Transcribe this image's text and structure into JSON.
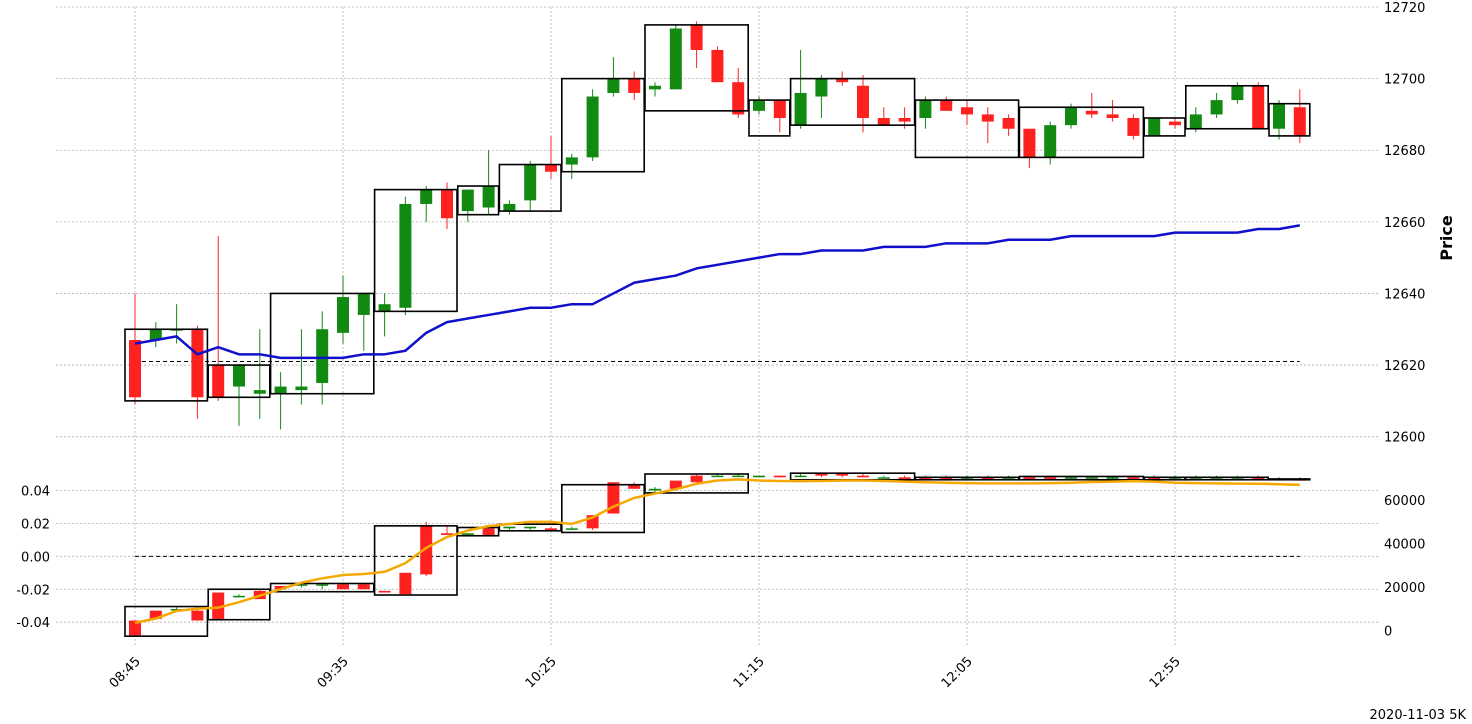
{
  "chart_data": {
    "type": "candlestick",
    "footer": "2020-11-03 5K",
    "ylabel": "Price",
    "x_ticks": [
      {
        "index": 0,
        "label": "08:45"
      },
      {
        "index": 10,
        "label": "09:35"
      },
      {
        "index": 20,
        "label": "10:25"
      },
      {
        "index": 30,
        "label": "11:15"
      },
      {
        "index": 40,
        "label": "12:05"
      },
      {
        "index": 50,
        "label": "12:55"
      }
    ],
    "price_panel": {
      "ylim": [
        12596,
        12720
      ],
      "y_ticks": [
        "12600",
        "12620",
        "12640",
        "12660",
        "12680",
        "12700",
        "12720"
      ],
      "reference_line": 12621,
      "candles": [
        [
          0,
          12627,
          12640,
          12609,
          12611
        ],
        [
          1,
          12627,
          12632,
          12625,
          12630
        ],
        [
          2,
          12630,
          12637,
          12626,
          12630
        ],
        [
          3,
          12630,
          12631,
          12605,
          12611
        ],
        [
          4,
          12620,
          12656,
          12610,
          12611
        ],
        [
          5,
          12614,
          12620,
          12603,
          12620
        ],
        [
          6,
          12612,
          12630,
          12605,
          12613
        ],
        [
          7,
          12612,
          12618,
          12602,
          12614
        ],
        [
          8,
          12613,
          12630,
          12609,
          12614
        ],
        [
          9,
          12615,
          12635,
          12609,
          12630
        ],
        [
          10,
          12629,
          12645,
          12626,
          12639
        ],
        [
          11,
          12634,
          12640,
          12624,
          12640
        ],
        [
          12,
          12635,
          12640,
          12628,
          12637
        ],
        [
          13,
          12636,
          12667,
          12634,
          12665
        ],
        [
          14,
          12665,
          12670,
          12660,
          12669
        ],
        [
          15,
          12669,
          12671,
          12658,
          12661
        ],
        [
          16,
          12663,
          12669,
          12660,
          12669
        ],
        [
          17,
          12664,
          12680,
          12662,
          12670
        ],
        [
          18,
          12663,
          12666,
          12662,
          12665
        ],
        [
          19,
          12666,
          12677,
          12663,
          12676
        ],
        [
          20,
          12676,
          12684,
          12672,
          12674
        ],
        [
          21,
          12676,
          12679,
          12672,
          12678
        ],
        [
          22,
          12678,
          12697,
          12677,
          12695
        ],
        [
          23,
          12696,
          12706,
          12695,
          12700
        ],
        [
          24,
          12700,
          12702,
          12694,
          12696
        ],
        [
          25,
          12697,
          12699,
          12695,
          12698
        ],
        [
          26,
          12697,
          12715,
          12697,
          12714
        ],
        [
          27,
          12715,
          12716,
          12703,
          12708
        ],
        [
          28,
          12708,
          12709,
          12699,
          12699
        ],
        [
          29,
          12699,
          12703,
          12689,
          12690
        ],
        [
          30,
          12691,
          12695,
          12690,
          12694
        ],
        [
          31,
          12694,
          12694,
          12685,
          12689
        ],
        [
          32,
          12687,
          12708,
          12686,
          12696
        ],
        [
          33,
          12695,
          12701,
          12689,
          12700
        ],
        [
          34,
          12700,
          12702,
          12698,
          12699
        ],
        [
          35,
          12698,
          12701,
          12685,
          12689
        ],
        [
          36,
          12689,
          12692,
          12687,
          12687
        ],
        [
          37,
          12689,
          12692,
          12686,
          12688
        ],
        [
          38,
          12689,
          12695,
          12686,
          12694
        ],
        [
          39,
          12694,
          12695,
          12691,
          12691
        ],
        [
          40,
          12692,
          12694,
          12687,
          12690
        ],
        [
          41,
          12690,
          12692,
          12682,
          12688
        ],
        [
          42,
          12689,
          12690,
          12684,
          12686
        ],
        [
          43,
          12686,
          12686,
          12675,
          12678
        ],
        [
          44,
          12678,
          12688,
          12676,
          12687
        ],
        [
          45,
          12687,
          12693,
          12686,
          12692
        ],
        [
          46,
          12691,
          12696,
          12689,
          12690
        ],
        [
          47,
          12690,
          12694,
          12688,
          12689
        ],
        [
          48,
          12689,
          12690,
          12683,
          12684
        ],
        [
          49,
          12684,
          12689,
          12684,
          12689
        ],
        [
          50,
          12688,
          12689,
          12686,
          12687
        ],
        [
          51,
          12686,
          12692,
          12685,
          12690
        ],
        [
          52,
          12690,
          12696,
          12689,
          12694
        ],
        [
          53,
          12694,
          12699,
          12693,
          12698
        ],
        [
          54,
          12698,
          12699,
          12686,
          12686
        ],
        [
          55,
          12686,
          12694,
          12683,
          12693
        ],
        [
          56,
          12692,
          12697,
          12682,
          12684
        ]
      ],
      "vwap_series": {
        "color": "#1010cc",
        "values": [
          12626,
          12627,
          12628,
          12623,
          12625,
          12623,
          12623,
          12622,
          12622,
          12622,
          12622,
          12623,
          12623,
          12624,
          12629,
          12632,
          12633,
          12634,
          12635,
          12636,
          12636,
          12637,
          12637,
          12640,
          12643,
          12644,
          12645,
          12647,
          12648,
          12649,
          12650,
          12651,
          12651,
          12652,
          12652,
          12652,
          12653,
          12653,
          12653,
          12654,
          12654,
          12654,
          12655,
          12655,
          12655,
          12656,
          12656,
          12656,
          12656,
          12656,
          12657,
          12657,
          12657,
          12657,
          12658,
          12658,
          12659
        ]
      },
      "boxes": [
        {
          "i0": 0,
          "i1": 3,
          "lo": 12610,
          "hi": 12630
        },
        {
          "i0": 4,
          "i1": 6,
          "lo": 12611,
          "hi": 12620
        },
        {
          "i0": 7,
          "i1": 11,
          "lo": 12612,
          "hi": 12640
        },
        {
          "i0": 12,
          "i1": 15,
          "lo": 12635,
          "hi": 12669
        },
        {
          "i0": 16,
          "i1": 17,
          "lo": 12662,
          "hi": 12670
        },
        {
          "i0": 18,
          "i1": 20,
          "lo": 12663,
          "hi": 12676
        },
        {
          "i0": 21,
          "i1": 24,
          "lo": 12674,
          "hi": 12700
        },
        {
          "i0": 25,
          "i1": 29,
          "lo": 12691,
          "hi": 12715
        },
        {
          "i0": 30,
          "i1": 31,
          "lo": 12684,
          "hi": 12694
        },
        {
          "i0": 32,
          "i1": 37,
          "lo": 12687,
          "hi": 12700
        },
        {
          "i0": 38,
          "i1": 42,
          "lo": 12678,
          "hi": 12694
        },
        {
          "i0": 43,
          "i1": 48,
          "lo": 12678,
          "hi": 12692
        },
        {
          "i0": 49,
          "i1": 50,
          "lo": 12684,
          "hi": 12689
        },
        {
          "i0": 51,
          "i1": 54,
          "lo": 12686,
          "hi": 12698
        },
        {
          "i0": 55,
          "i1": 56,
          "lo": 12684,
          "hi": 12693
        }
      ]
    },
    "sub_panel": {
      "left_ylim": [
        -0.049,
        0.05
      ],
      "left_ticks": [
        "-0.04",
        "-0.02",
        "0.00",
        "0.02",
        "0.04"
      ],
      "right_ylim": [
        -3000,
        72000
      ],
      "right_ticks": [
        "0",
        "20000",
        "40000",
        "60000"
      ],
      "reference_line": 0.0,
      "candles": [
        [
          0,
          -0.039,
          -0.039,
          -0.048,
          -0.048
        ],
        [
          1,
          -0.033,
          -0.033,
          -0.038,
          -0.038
        ],
        [
          2,
          -0.032,
          -0.031,
          -0.033,
          -0.032
        ],
        [
          3,
          -0.033,
          -0.031,
          -0.039,
          -0.039
        ],
        [
          4,
          -0.022,
          -0.022,
          -0.038,
          -0.038
        ],
        [
          5,
          -0.024,
          -0.023,
          -0.025,
          -0.024
        ],
        [
          6,
          -0.021,
          -0.02,
          -0.026,
          -0.026
        ],
        [
          7,
          -0.018,
          -0.018,
          -0.02,
          -0.02
        ],
        [
          8,
          -0.017,
          -0.016,
          -0.019,
          -0.017
        ],
        [
          9,
          -0.017,
          -0.016,
          -0.02,
          -0.017
        ],
        [
          10,
          -0.017,
          -0.016,
          -0.02,
          -0.02
        ],
        [
          11,
          -0.017,
          -0.016,
          -0.02,
          -0.02
        ],
        [
          12,
          -0.021,
          -0.021,
          -0.022,
          -0.022
        ],
        [
          13,
          -0.01,
          -0.01,
          -0.023,
          -0.023
        ],
        [
          14,
          0.019,
          0.021,
          -0.012,
          -0.011
        ],
        [
          15,
          0.014,
          0.018,
          0.013,
          0.013
        ],
        [
          16,
          0.013,
          0.014,
          0.012,
          0.014
        ],
        [
          17,
          0.017,
          0.018,
          0.013,
          0.013
        ],
        [
          18,
          0.017,
          0.018,
          0.016,
          0.018
        ],
        [
          19,
          0.017,
          0.018,
          0.016,
          0.018
        ],
        [
          20,
          0.017,
          0.018,
          0.016,
          0.016
        ],
        [
          21,
          0.017,
          0.018,
          0.016,
          0.017
        ],
        [
          22,
          0.025,
          0.025,
          0.016,
          0.017
        ],
        [
          23,
          0.045,
          0.045,
          0.026,
          0.026
        ],
        [
          24,
          0.043,
          0.045,
          0.041,
          0.041
        ],
        [
          25,
          0.04,
          0.042,
          0.039,
          0.041
        ],
        [
          26,
          0.046,
          0.046,
          0.04,
          0.041
        ],
        [
          27,
          0.049,
          0.05,
          0.045,
          0.045
        ],
        [
          28,
          0.049,
          0.05,
          0.049,
          0.049
        ],
        [
          29,
          0.049,
          0.05,
          0.049,
          0.049
        ],
        [
          30,
          0.048,
          0.049,
          0.048,
          0.049
        ],
        [
          31,
          0.049,
          0.049,
          0.048,
          0.048
        ],
        [
          32,
          0.049,
          0.05,
          0.048,
          0.049
        ],
        [
          33,
          0.05,
          0.05,
          0.048,
          0.049
        ],
        [
          34,
          0.05,
          0.05,
          0.048,
          0.049
        ],
        [
          35,
          0.049,
          0.05,
          0.048,
          0.048
        ],
        [
          36,
          0.048,
          0.049,
          0.048,
          0.048
        ],
        [
          37,
          0.048,
          0.049,
          0.047,
          0.047
        ],
        [
          38,
          0.048,
          0.049,
          0.047,
          0.047
        ],
        [
          39,
          0.048,
          0.049,
          0.047,
          0.047
        ],
        [
          40,
          0.048,
          0.049,
          0.047,
          0.048
        ],
        [
          41,
          0.048,
          0.049,
          0.047,
          0.047
        ],
        [
          42,
          0.048,
          0.049,
          0.047,
          0.048
        ],
        [
          43,
          0.048,
          0.049,
          0.047,
          0.047
        ],
        [
          44,
          0.048,
          0.049,
          0.047,
          0.047
        ],
        [
          45,
          0.048,
          0.049,
          0.047,
          0.048
        ],
        [
          46,
          0.048,
          0.049,
          0.047,
          0.048
        ],
        [
          47,
          0.048,
          0.049,
          0.047,
          0.048
        ],
        [
          48,
          0.048,
          0.049,
          0.047,
          0.047
        ],
        [
          49,
          0.048,
          0.049,
          0.047,
          0.047
        ],
        [
          50,
          0.048,
          0.049,
          0.047,
          0.048
        ],
        [
          51,
          0.048,
          0.049,
          0.047,
          0.048
        ],
        [
          52,
          0.048,
          0.049,
          0.047,
          0.048
        ],
        [
          53,
          0.048,
          0.049,
          0.047,
          0.048
        ],
        [
          54,
          0.048,
          0.049,
          0.047,
          0.047
        ],
        [
          55,
          0.047,
          0.048,
          0.046,
          0.047
        ],
        [
          56,
          0.047,
          0.048,
          0.046,
          0.046
        ]
      ],
      "line_series": {
        "color": "#f5a800",
        "axis": "right",
        "values": [
          3500,
          5500,
          9000,
          10000,
          10500,
          13000,
          16000,
          19000,
          22000,
          24000,
          25500,
          26000,
          27000,
          31000,
          38000,
          43000,
          46000,
          48000,
          49000,
          50000,
          50000,
          49000,
          52000,
          57000,
          61000,
          63000,
          65000,
          67500,
          69000,
          69500,
          69000,
          68800,
          68700,
          68800,
          69000,
          69000,
          68800,
          68500,
          68200,
          68000,
          67800,
          67700,
          67700,
          67700,
          67800,
          68000,
          68300,
          68500,
          68700,
          68500,
          68000,
          67800,
          67700,
          67600,
          67500,
          67300,
          67000
        ]
      },
      "boxes": [
        {
          "i0": 0,
          "i1": 3,
          "lo": -0.0485,
          "hi": -0.0305
        },
        {
          "i0": 4,
          "i1": 6,
          "lo": -0.0385,
          "hi": -0.02
        },
        {
          "i0": 7,
          "i1": 11,
          "lo": -0.0215,
          "hi": -0.0165
        },
        {
          "i0": 12,
          "i1": 15,
          "lo": -0.0235,
          "hi": 0.0185
        },
        {
          "i0": 16,
          "i1": 17,
          "lo": 0.0125,
          "hi": 0.0175
        },
        {
          "i0": 18,
          "i1": 20,
          "lo": 0.0155,
          "hi": 0.0195
        },
        {
          "i0": 21,
          "i1": 24,
          "lo": 0.0145,
          "hi": 0.0435
        },
        {
          "i0": 25,
          "i1": 29,
          "lo": 0.0385,
          "hi": 0.05
        },
        {
          "i0": 32,
          "i1": 37,
          "lo": 0.0465,
          "hi": 0.0505
        },
        {
          "i0": 38,
          "i1": 42,
          "lo": 0.0465,
          "hi": 0.048
        },
        {
          "i0": 43,
          "i1": 48,
          "lo": 0.0465,
          "hi": 0.0485
        },
        {
          "i0": 49,
          "i1": 50,
          "lo": 0.0465,
          "hi": 0.048
        },
        {
          "i0": 51,
          "i1": 54,
          "lo": 0.0465,
          "hi": 0.048
        },
        {
          "i0": 55,
          "i1": 56,
          "lo": 0.0465,
          "hi": 0.047
        }
      ]
    },
    "colors": {
      "up": "#ff2020",
      "down": "#128a12",
      "grid": "#b0b0b0",
      "box": "#000000"
    }
  }
}
